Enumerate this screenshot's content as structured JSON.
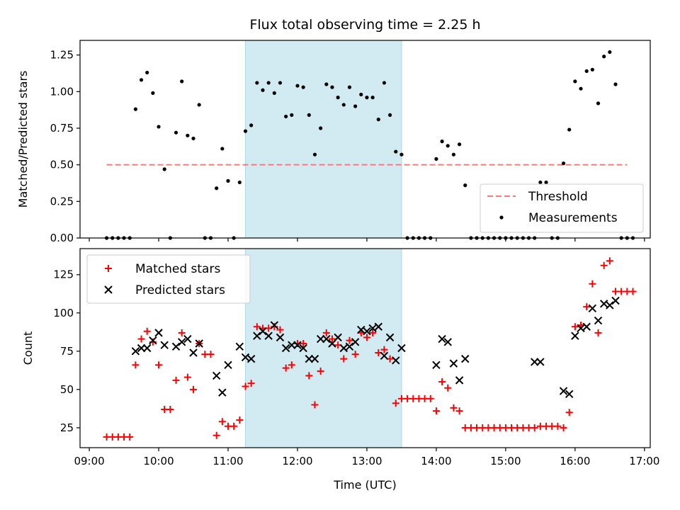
{
  "chart_data": [
    {
      "type": "scatter",
      "title": "Flux total observing time = 2.25 h",
      "ylabel": "Matched/Predicted stars",
      "xlabel": "",
      "xlim": [
        "08:52",
        "17:05"
      ],
      "ylim": [
        0,
        1.35
      ],
      "x_ticks": [
        "09:00",
        "10:00",
        "11:00",
        "12:00",
        "13:00",
        "14:00",
        "15:00",
        "16:00",
        "17:00"
      ],
      "y_ticks": [
        0,
        0.25,
        0.5,
        0.75,
        1.0,
        1.25
      ],
      "y_tick_labels": [
        "0.00",
        "0.25",
        "0.50",
        "0.75",
        "1.00",
        "1.25"
      ],
      "shaded_span": [
        "11:15",
        "13:30"
      ],
      "legend_position": "lower-right",
      "threshold": {
        "name": "Threshold",
        "y": 0.5,
        "x_range": [
          "09:15",
          "16:45"
        ],
        "color": "#ff7777"
      },
      "series": [
        {
          "name": "Measurements",
          "color": "#000000",
          "points": [
            [
              "09:15",
              0
            ],
            [
              "09:20",
              0
            ],
            [
              "09:25",
              0
            ],
            [
              "09:30",
              0
            ],
            [
              "09:35",
              0
            ],
            [
              "09:40",
              0.88
            ],
            [
              "09:45",
              1.08
            ],
            [
              "09:50",
              1.13
            ],
            [
              "09:55",
              0.99
            ],
            [
              "10:00",
              0.76
            ],
            [
              "10:05",
              0.47
            ],
            [
              "10:10",
              0
            ],
            [
              "10:15",
              0.72
            ],
            [
              "10:20",
              1.07
            ],
            [
              "10:25",
              0.7
            ],
            [
              "10:30",
              0.68
            ],
            [
              "10:35",
              0.91
            ],
            [
              "10:40",
              0
            ],
            [
              "10:45",
              0
            ],
            [
              "10:50",
              0.34
            ],
            [
              "10:55",
              0.61
            ],
            [
              "11:00",
              0.39
            ],
            [
              "11:05",
              0
            ],
            [
              "11:10",
              0.38
            ],
            [
              "11:15",
              0.73
            ],
            [
              "11:20",
              0.77
            ],
            [
              "11:25",
              1.06
            ],
            [
              "11:30",
              1.01
            ],
            [
              "11:35",
              1.06
            ],
            [
              "11:40",
              0.99
            ],
            [
              "11:45",
              1.06
            ],
            [
              "11:50",
              0.83
            ],
            [
              "11:55",
              0.84
            ],
            [
              "12:00",
              1.04
            ],
            [
              "12:05",
              1.03
            ],
            [
              "12:10",
              0.84
            ],
            [
              "12:15",
              0.57
            ],
            [
              "12:20",
              0.75
            ],
            [
              "12:25",
              1.05
            ],
            [
              "12:30",
              1.03
            ],
            [
              "12:35",
              0.96
            ],
            [
              "12:40",
              0.91
            ],
            [
              "12:45",
              1.03
            ],
            [
              "12:50",
              0.9
            ],
            [
              "12:55",
              0.98
            ],
            [
              "13:00",
              0.96
            ],
            [
              "13:05",
              0.96
            ],
            [
              "13:10",
              0.81
            ],
            [
              "13:15",
              1.06
            ],
            [
              "13:20",
              0.84
            ],
            [
              "13:25",
              0.59
            ],
            [
              "13:30",
              0.57
            ],
            [
              "13:35",
              0
            ],
            [
              "13:40",
              0
            ],
            [
              "13:45",
              0
            ],
            [
              "13:50",
              0
            ],
            [
              "13:55",
              0
            ],
            [
              "14:00",
              0.54
            ],
            [
              "14:05",
              0.66
            ],
            [
              "14:10",
              0.63
            ],
            [
              "14:15",
              0.57
            ],
            [
              "14:20",
              0.64
            ],
            [
              "14:25",
              0.36
            ],
            [
              "14:30",
              0
            ],
            [
              "14:35",
              0
            ],
            [
              "14:40",
              0
            ],
            [
              "14:45",
              0
            ],
            [
              "14:50",
              0
            ],
            [
              "14:55",
              0
            ],
            [
              "15:00",
              0
            ],
            [
              "15:05",
              0
            ],
            [
              "15:10",
              0
            ],
            [
              "15:15",
              0
            ],
            [
              "15:20",
              0
            ],
            [
              "15:25",
              0
            ],
            [
              "15:30",
              0.38
            ],
            [
              "15:35",
              0.38
            ],
            [
              "15:40",
              0
            ],
            [
              "15:45",
              0
            ],
            [
              "15:50",
              0.51
            ],
            [
              "15:55",
              0.74
            ],
            [
              "16:00",
              1.07
            ],
            [
              "16:05",
              1.02
            ],
            [
              "16:10",
              1.14
            ],
            [
              "16:15",
              1.15
            ],
            [
              "16:20",
              0.92
            ],
            [
              "16:25",
              1.24
            ],
            [
              "16:30",
              1.27
            ],
            [
              "16:35",
              1.05
            ],
            [
              "16:40",
              0
            ],
            [
              "16:45",
              0
            ],
            [
              "16:50",
              0
            ]
          ]
        }
      ]
    },
    {
      "type": "scatter",
      "title": "",
      "ylabel": "Count",
      "xlabel": "Time (UTC)",
      "xlim": [
        "08:52",
        "17:05"
      ],
      "ylim": [
        12,
        142
      ],
      "x_ticks": [
        "09:00",
        "10:00",
        "11:00",
        "12:00",
        "13:00",
        "14:00",
        "15:00",
        "16:00",
        "17:00"
      ],
      "y_ticks": [
        25,
        50,
        75,
        100,
        125
      ],
      "y_tick_labels": [
        "25",
        "50",
        "75",
        "100",
        "125"
      ],
      "shaded_span": [
        "11:15",
        "13:30"
      ],
      "legend_position": "upper-left",
      "series": [
        {
          "name": "Matched stars",
          "color": "#ff0000",
          "marker": "plus",
          "points": [
            [
              "09:15",
              19
            ],
            [
              "09:20",
              19
            ],
            [
              "09:25",
              19
            ],
            [
              "09:30",
              19
            ],
            [
              "09:35",
              19
            ],
            [
              "09:40",
              66
            ],
            [
              "09:45",
              83
            ],
            [
              "09:50",
              88
            ],
            [
              "09:55",
              81
            ],
            [
              "10:00",
              66
            ],
            [
              "10:05",
              37
            ],
            [
              "10:10",
              37
            ],
            [
              "10:15",
              56
            ],
            [
              "10:20",
              87
            ],
            [
              "10:25",
              58
            ],
            [
              "10:30",
              50
            ],
            [
              "10:35",
              80
            ],
            [
              "10:40",
              73
            ],
            [
              "10:45",
              73
            ],
            [
              "10:50",
              20
            ],
            [
              "10:55",
              29
            ],
            [
              "11:00",
              26
            ],
            [
              "11:05",
              26
            ],
            [
              "11:10",
              30
            ],
            [
              "11:15",
              52
            ],
            [
              "11:20",
              54
            ],
            [
              "11:25",
              91
            ],
            [
              "11:30",
              90
            ],
            [
              "11:35",
              90
            ],
            [
              "11:40",
              91
            ],
            [
              "11:45",
              89
            ],
            [
              "11:50",
              64
            ],
            [
              "11:55",
              66
            ],
            [
              "12:00",
              80
            ],
            [
              "12:05",
              80
            ],
            [
              "12:10",
              59
            ],
            [
              "12:15",
              40
            ],
            [
              "12:20",
              62
            ],
            [
              "12:25",
              87
            ],
            [
              "12:30",
              83
            ],
            [
              "12:35",
              79
            ],
            [
              "12:40",
              70
            ],
            [
              "12:45",
              82
            ],
            [
              "12:50",
              73
            ],
            [
              "12:55",
              87
            ],
            [
              "13:00",
              84
            ],
            [
              "13:05",
              87
            ],
            [
              "13:10",
              74
            ],
            [
              "13:15",
              76
            ],
            [
              "13:20",
              70
            ],
            [
              "13:25",
              41
            ],
            [
              "13:30",
              44
            ],
            [
              "13:35",
              44
            ],
            [
              "13:40",
              44
            ],
            [
              "13:45",
              44
            ],
            [
              "13:50",
              44
            ],
            [
              "13:55",
              44
            ],
            [
              "14:00",
              36
            ],
            [
              "14:05",
              55
            ],
            [
              "14:10",
              51
            ],
            [
              "14:15",
              38
            ],
            [
              "14:20",
              36
            ],
            [
              "14:25",
              25
            ],
            [
              "14:30",
              25
            ],
            [
              "14:35",
              25
            ],
            [
              "14:40",
              25
            ],
            [
              "14:45",
              25
            ],
            [
              "14:50",
              25
            ],
            [
              "14:55",
              25
            ],
            [
              "15:00",
              25
            ],
            [
              "15:05",
              25
            ],
            [
              "15:10",
              25
            ],
            [
              "15:15",
              25
            ],
            [
              "15:20",
              25
            ],
            [
              "15:25",
              25
            ],
            [
              "15:30",
              26
            ],
            [
              "15:35",
              26
            ],
            [
              "15:40",
              26
            ],
            [
              "15:45",
              26
            ],
            [
              "15:50",
              25
            ],
            [
              "15:55",
              35
            ],
            [
              "16:00",
              91
            ],
            [
              "16:05",
              92
            ],
            [
              "16:10",
              104
            ],
            [
              "16:15",
              119
            ],
            [
              "16:20",
              87
            ],
            [
              "16:25",
              131
            ],
            [
              "16:30",
              134
            ],
            [
              "16:35",
              114
            ],
            [
              "16:40",
              114
            ],
            [
              "16:45",
              114
            ],
            [
              "16:50",
              114
            ]
          ]
        },
        {
          "name": "Predicted stars",
          "color": "#000000",
          "marker": "x",
          "points": [
            [
              "09:40",
              75
            ],
            [
              "09:45",
              77
            ],
            [
              "09:50",
              77
            ],
            [
              "09:55",
              82
            ],
            [
              "10:00",
              87
            ],
            [
              "10:05",
              79
            ],
            [
              "10:15",
              78
            ],
            [
              "10:20",
              81
            ],
            [
              "10:25",
              83
            ],
            [
              "10:30",
              74
            ],
            [
              "10:35",
              80
            ],
            [
              "10:50",
              59
            ],
            [
              "10:55",
              48
            ],
            [
              "11:00",
              66
            ],
            [
              "11:10",
              78
            ],
            [
              "11:15",
              71
            ],
            [
              "11:20",
              70
            ],
            [
              "11:25",
              85
            ],
            [
              "11:30",
              88
            ],
            [
              "11:35",
              85
            ],
            [
              "11:40",
              92
            ],
            [
              "11:45",
              84
            ],
            [
              "11:50",
              77
            ],
            [
              "11:55",
              79
            ],
            [
              "12:00",
              79
            ],
            [
              "12:05",
              77
            ],
            [
              "12:10",
              70
            ],
            [
              "12:15",
              70
            ],
            [
              "12:20",
              83
            ],
            [
              "12:25",
              83
            ],
            [
              "12:30",
              80
            ],
            [
              "12:35",
              84
            ],
            [
              "12:40",
              77
            ],
            [
              "12:45",
              78
            ],
            [
              "12:50",
              81
            ],
            [
              "12:55",
              89
            ],
            [
              "13:00",
              88
            ],
            [
              "13:05",
              90
            ],
            [
              "13:10",
              91
            ],
            [
              "13:15",
              72
            ],
            [
              "13:20",
              84
            ],
            [
              "13:25",
              69
            ],
            [
              "13:30",
              77
            ],
            [
              "14:00",
              66
            ],
            [
              "14:05",
              83
            ],
            [
              "14:10",
              81
            ],
            [
              "14:15",
              67
            ],
            [
              "14:20",
              56
            ],
            [
              "14:25",
              70
            ],
            [
              "15:25",
              68
            ],
            [
              "15:30",
              68
            ],
            [
              "15:50",
              49
            ],
            [
              "15:55",
              47
            ],
            [
              "16:00",
              85
            ],
            [
              "16:05",
              90
            ],
            [
              "16:10",
              91
            ],
            [
              "16:15",
              103
            ],
            [
              "16:20",
              95
            ],
            [
              "16:25",
              106
            ],
            [
              "16:30",
              105
            ],
            [
              "16:35",
              108
            ]
          ]
        }
      ]
    }
  ]
}
